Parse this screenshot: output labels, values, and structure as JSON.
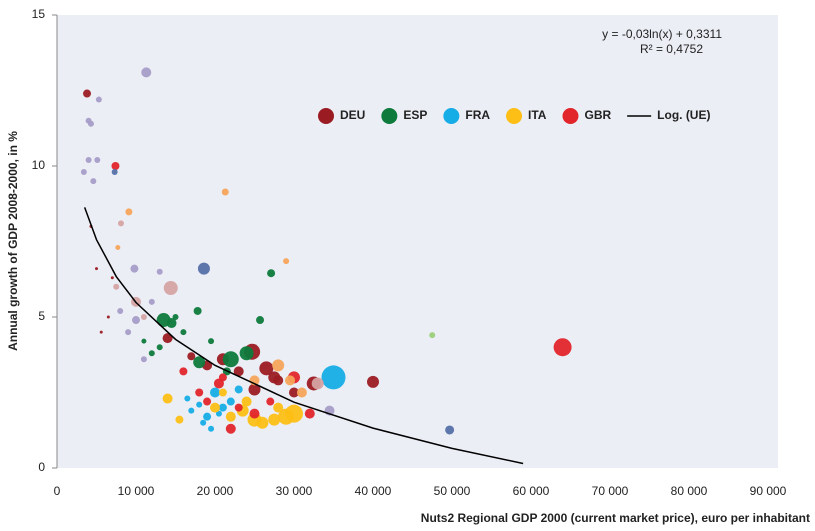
{
  "chart_data": {
    "type": "scatter",
    "xlabel": "Nuts2 Regional GDP 2000 (current market price), euro per inhabitant",
    "ylabel": "Annual growth of GDP 2008-2000, in %",
    "annotations": [
      "y = -0,03ln(x) + 0,3311",
      "R² = 0,4752"
    ],
    "xlim": [
      0,
      90000
    ],
    "ylim": [
      0,
      15
    ],
    "xticks": [
      0,
      {
        "value": 10000,
        "label": "10 000"
      },
      {
        "value": 20000,
        "label": "20 000"
      },
      {
        "value": 30000,
        "label": "30 000"
      },
      {
        "value": 40000,
        "label": "40 000"
      },
      {
        "value": 50000,
        "label": "50 000"
      },
      {
        "value": 60000,
        "label": "60 000"
      },
      {
        "value": 70000,
        "label": "70 000"
      },
      {
        "value": 80000,
        "label": "80 000"
      },
      {
        "value": 90000,
        "label": "90 000"
      }
    ],
    "yticks": [
      0,
      5,
      10,
      15
    ],
    "grid": false,
    "series": [
      {
        "name": "DEU",
        "color": "#9b1b22",
        "x": [
          40000,
          24700,
          26500,
          32500,
          25000,
          27500,
          14000,
          19000,
          21000,
          28000,
          23000,
          30000,
          17000,
          5000,
          5600,
          4300,
          7000,
          6500,
          3800
        ],
        "values": [
          2.85,
          3.85,
          3.3,
          2.8,
          2.6,
          3.0,
          4.3,
          3.4,
          3.6,
          2.9,
          3.2,
          2.5,
          3.7,
          6.6,
          4.5,
          8.0,
          6.3,
          5.0,
          12.4
        ],
        "size": [
          6,
          8,
          7,
          7,
          6,
          6,
          5,
          5,
          6,
          5,
          5,
          5,
          4,
          1.5,
          1.5,
          1.5,
          1.5,
          1.5,
          4
        ]
      },
      {
        "name": "ESP",
        "color": "#0e7a3c",
        "x": [
          22000,
          24000,
          13500,
          14500,
          18000,
          25700,
          27100,
          17800,
          13000,
          16000,
          12000,
          19500,
          21500,
          15000,
          11000
        ],
        "values": [
          3.6,
          3.8,
          4.9,
          4.8,
          3.5,
          4.9,
          6.45,
          5.2,
          4.0,
          4.5,
          3.8,
          4.2,
          3.2,
          5.0,
          4.2
        ],
        "size": [
          8,
          7,
          7,
          5,
          6,
          4,
          4,
          4,
          3,
          3,
          3,
          3,
          4,
          3,
          2.5
        ]
      },
      {
        "name": "FRA",
        "color": "#16ade6",
        "x": [
          35000,
          20000,
          21000,
          19000,
          22000,
          18500,
          17000,
          19500,
          23000,
          16500,
          18000,
          20500
        ],
        "values": [
          3.0,
          2.5,
          2.0,
          1.7,
          2.2,
          1.5,
          1.9,
          1.3,
          2.6,
          2.3,
          2.1,
          1.8
        ],
        "size": [
          12,
          5,
          4,
          4,
          4,
          3,
          3,
          3,
          4,
          3,
          3,
          3
        ]
      },
      {
        "name": "ITA",
        "color": "#fdbf16",
        "x": [
          30000,
          29000,
          27500,
          26000,
          25000,
          23500,
          22000,
          20000,
          14000,
          15500,
          28000,
          24000,
          21000
        ],
        "values": [
          1.8,
          1.7,
          1.6,
          1.5,
          1.6,
          1.9,
          1.7,
          2.0,
          2.3,
          1.6,
          2.0,
          2.2,
          2.5
        ],
        "size": [
          9,
          8,
          6,
          6,
          7,
          6,
          5,
          5,
          5,
          4,
          5,
          5,
          4
        ]
      },
      {
        "name": "GBR",
        "color": "#e2252b",
        "x": [
          64000,
          30000,
          32000,
          22000,
          25000,
          19000,
          18000,
          20500,
          16000,
          27000,
          23000,
          21000,
          7400
        ],
        "values": [
          4.0,
          3.0,
          1.8,
          1.3,
          1.8,
          2.2,
          2.5,
          2.8,
          3.2,
          2.2,
          2.0,
          3.0,
          10.0
        ],
        "size": [
          9,
          6,
          5,
          5,
          5,
          4,
          4,
          5,
          4,
          4,
          4,
          4,
          4
        ]
      },
      {
        "color": "#a79dc8",
        "x": [
          11300,
          5300,
          4000,
          4300,
          3400,
          4000,
          5100,
          4600,
          9800,
          13000,
          12000,
          8000,
          10000,
          9000,
          11000,
          34500
        ],
        "values": [
          13.1,
          12.2,
          11.5,
          11.4,
          9.8,
          10.2,
          10.2,
          9.5,
          6.6,
          6.5,
          5.5,
          5.2,
          4.9,
          4.5,
          3.6,
          1.9
        ],
        "size": [
          5,
          3,
          3,
          3,
          3,
          3,
          3,
          3,
          4,
          3,
          3,
          3,
          4,
          3,
          3,
          5
        ]
      },
      {
        "color": "#5570a8",
        "x": [
          18600,
          49700,
          7300
        ],
        "values": [
          6.6,
          1.26,
          9.8
        ],
        "size": [
          6,
          4.5,
          3
        ]
      },
      {
        "color": "#d6a3a3",
        "x": [
          14400,
          10000,
          7500,
          11000,
          33000,
          8100
        ],
        "values": [
          5.96,
          5.5,
          6.0,
          5.0,
          2.8,
          8.1
        ],
        "size": [
          7,
          5,
          3,
          3,
          6,
          3
        ]
      },
      {
        "color": "#f7a45a",
        "x": [
          21300,
          9100,
          7700,
          29000,
          28000,
          29500,
          31000,
          25000
        ],
        "values": [
          9.14,
          8.48,
          7.3,
          6.85,
          3.4,
          2.9,
          2.5,
          2.9
        ],
        "size": [
          3.5,
          3.5,
          2.5,
          3,
          6,
          5,
          5,
          5
        ]
      },
      {
        "color": "#9ccf7a",
        "x": [
          47500
        ],
        "values": [
          4.4
        ],
        "size": [
          3
        ]
      },
      {
        "name": "Log. (UE)",
        "color": "#000000",
        "type": "line",
        "x": [
          3500,
          5000,
          7500,
          10000,
          15000,
          20000,
          30000,
          40000,
          50000,
          59000
        ],
        "values": [
          8.63,
          7.56,
          6.34,
          5.48,
          4.26,
          3.4,
          2.18,
          1.32,
          0.65,
          0.15
        ]
      }
    ]
  }
}
